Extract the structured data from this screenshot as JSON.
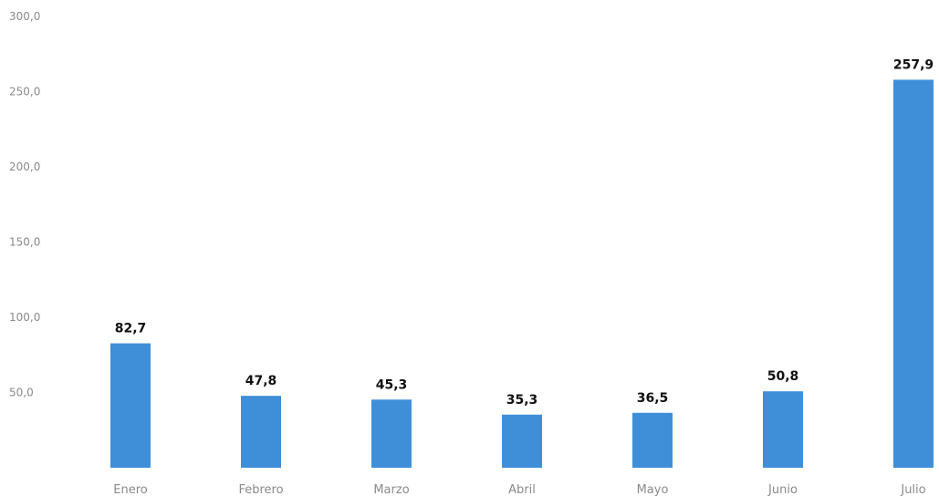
{
  "chart_data": {
    "type": "bar",
    "categories": [
      "Enero",
      "Febrero",
      "Marzo",
      "Abril",
      "Mayo",
      "Junio",
      "Julio"
    ],
    "values": [
      82.7,
      47.8,
      45.3,
      35.3,
      36.5,
      50.8,
      257.9
    ],
    "data_labels": [
      "82,7",
      "47,8",
      "45,3",
      "35,3",
      "36,5",
      "50,8",
      "257,9"
    ],
    "yticks": [
      "50,0",
      "100,0",
      "150,0",
      "200,0",
      "250,0",
      "300,0"
    ],
    "ytick_values": [
      50,
      100,
      150,
      200,
      250,
      300
    ],
    "ylim": [
      0,
      300
    ],
    "grid": false,
    "bar_color": "#3f8fd8"
  }
}
